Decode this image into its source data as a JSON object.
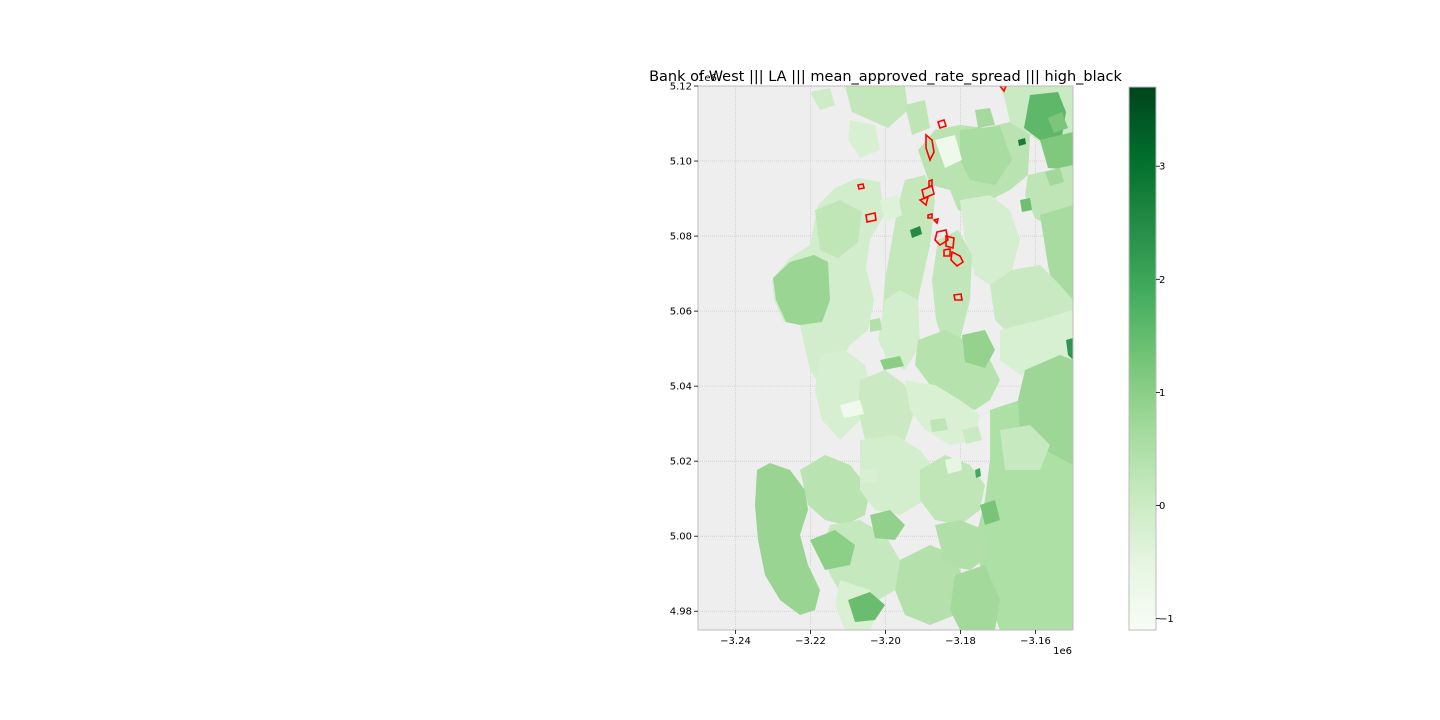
{
  "title": "Bank of West ||| LA ||| mean_approved_rate_spread ||| high_black",
  "chart_data": {
    "type": "choropleth map",
    "title": "Bank of West ||| LA ||| mean_approved_rate_spread ||| high_black",
    "xlim": [
      -3.25,
      -3.15
    ],
    "ylim": [
      4.975,
      5.12
    ],
    "x_offset_label": "1e6",
    "y_offset_label": "1e6",
    "x_ticks": [
      -3.24,
      -3.22,
      -3.2,
      -3.18,
      -3.16
    ],
    "x_tick_labels": [
      "−3.24",
      "−3.22",
      "−3.20",
      "−3.18",
      "−3.16"
    ],
    "y_ticks": [
      4.98,
      5.0,
      5.02,
      5.04,
      5.06,
      5.08,
      5.1,
      5.12
    ],
    "y_tick_labels": [
      "4.98",
      "5.00",
      "5.02",
      "5.04",
      "5.06",
      "5.08",
      "5.10",
      "5.12"
    ],
    "grid": true,
    "colormap": "Greens",
    "colorbar": {
      "range": [
        -1.1,
        3.7
      ],
      "ticks": [
        -1,
        0,
        1,
        2,
        3
      ],
      "tick_labels": [
        "−1",
        "0",
        "1",
        "2",
        "3"
      ]
    },
    "highlight_outline_color": "#ff0000",
    "background_color": "#eeeeee"
  }
}
